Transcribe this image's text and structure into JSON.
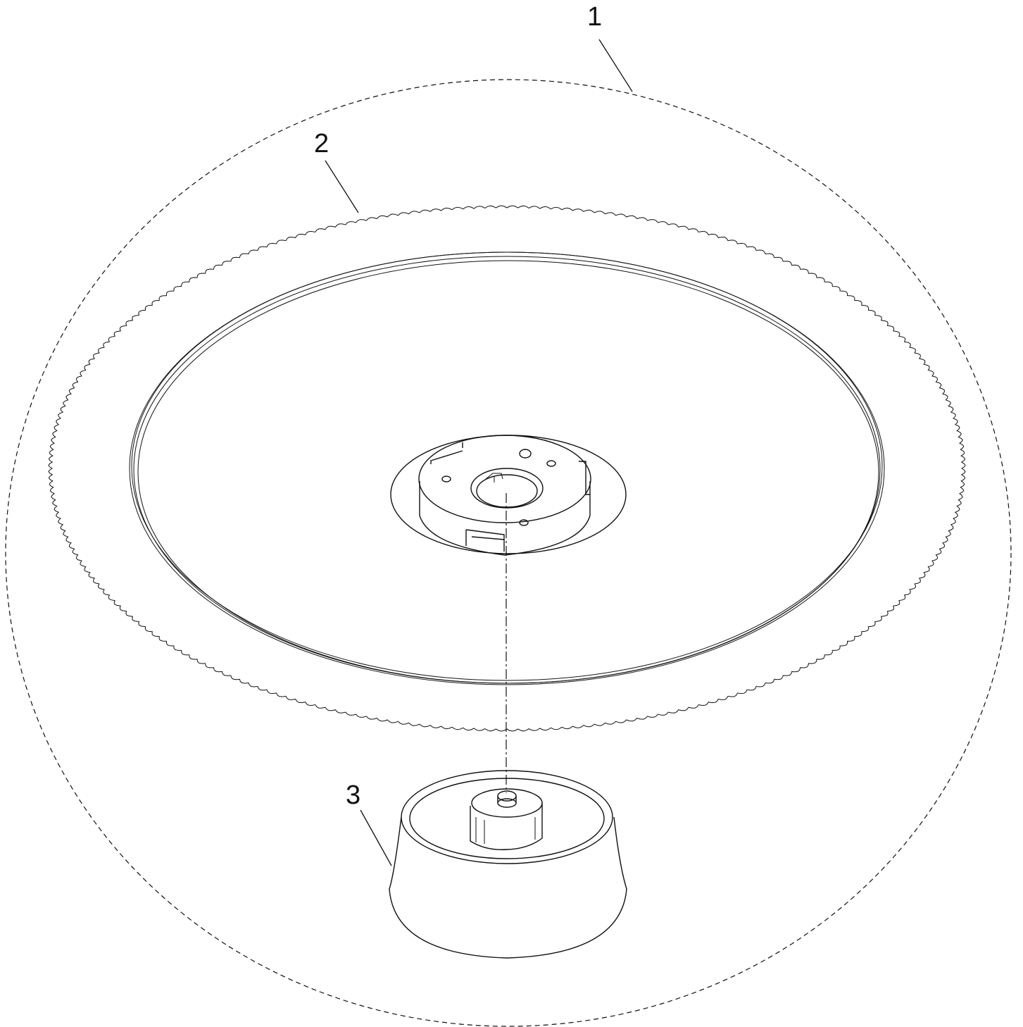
{
  "callouts": [
    {
      "id": "1",
      "label": "1"
    },
    {
      "id": "2",
      "label": "2"
    },
    {
      "id": "3",
      "label": "3"
    }
  ],
  "colors": {
    "ink": "#111111",
    "background": "#ffffff"
  }
}
